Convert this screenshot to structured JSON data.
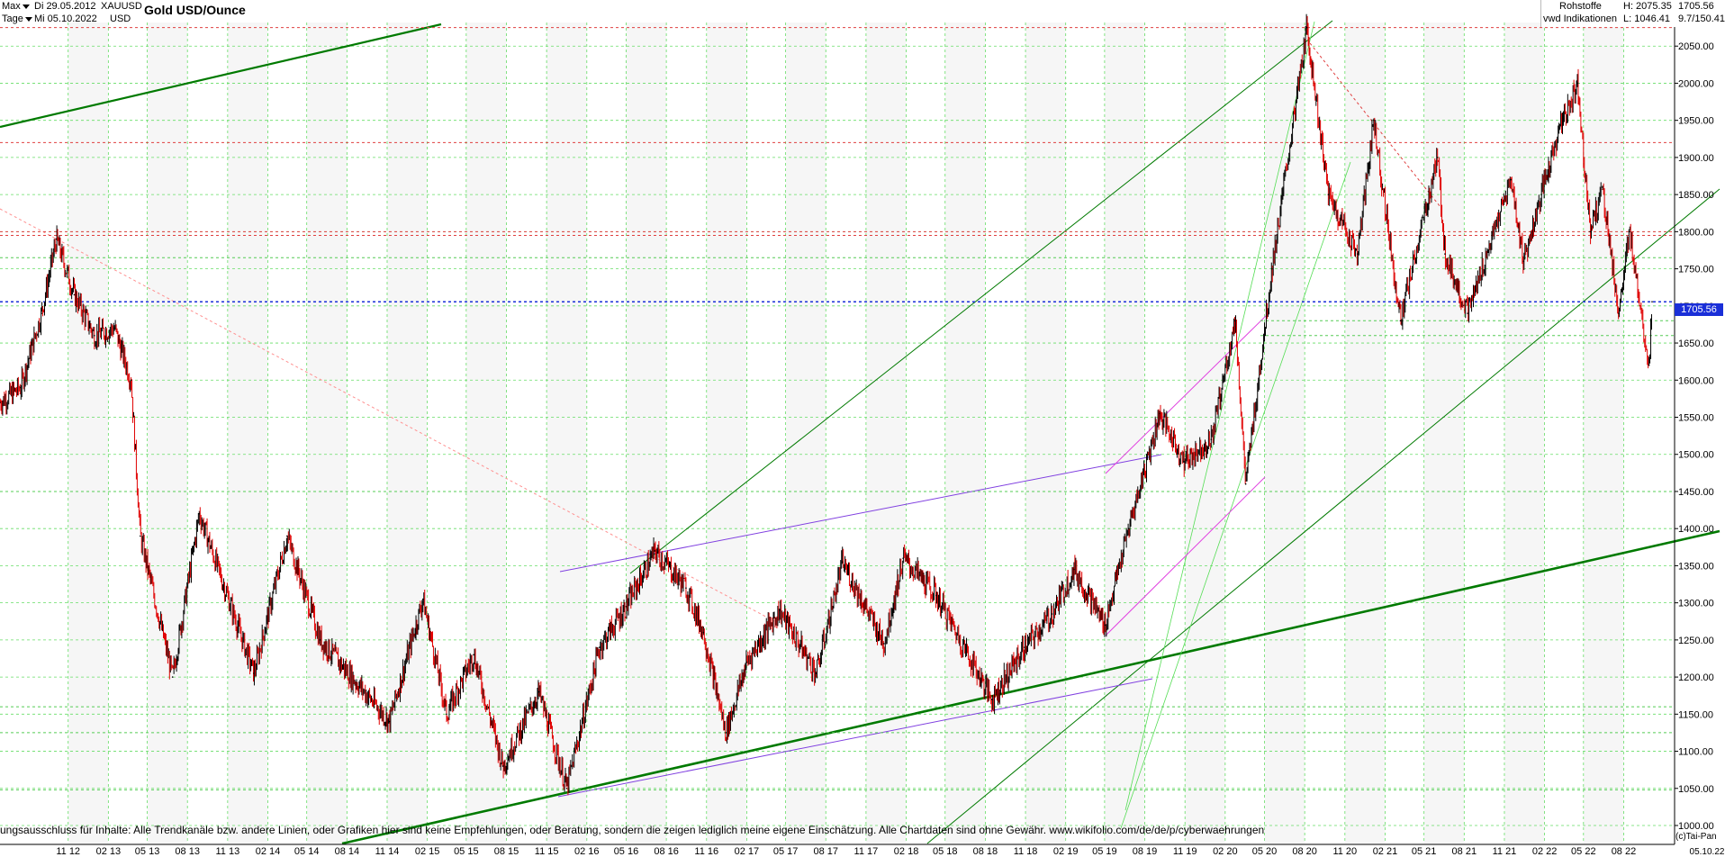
{
  "header": {
    "range_label": "Max",
    "interval_label": "Tage",
    "date_from": "Di 29.05.2012",
    "date_to": "Mi 05.10.2022",
    "symbol": "XAUUSD",
    "currency": "USD",
    "title": "Gold USD/Ounce"
  },
  "info": {
    "category": "Rohstoffe",
    "source": "vwd Indikationen",
    "high": "H: 2075.35",
    "low": "L: 1046.41",
    "last": "1705.56",
    "ratio": "9.7/150.41"
  },
  "disclaimer": "ungsausschluss für Inhalte: Alle Trendkanäle bzw. andere Linien, oder Grafiken hier sind keine Empfehlungen, oder Beratung, sondern die zeigen lediglich meine eigene Einschätzung. Alle Chartdaten sind ohne Gewähr.  www.wikifolio.com/de/de/p/cyberwaehrungen",
  "copyright": "(c)Tai-Pan",
  "colors": {
    "candle": "#000000",
    "down": "#e00000",
    "grid": "#66dd66",
    "trend": "#007a00",
    "support": "#e04040",
    "current": "#1a2fd8",
    "channel": "#8040e0",
    "magenta": "#e040e0"
  },
  "chart_data": {
    "type": "line",
    "title": "Gold USD/Ounce",
    "ylim": [
      1000,
      2100
    ],
    "yticks": [
      "1000.00",
      "1050.00",
      "1100.00",
      "1150.00",
      "1200.00",
      "1250.00",
      "1300.00",
      "1350.00",
      "1400.00",
      "1450.00",
      "1500.00",
      "1550.00",
      "1600.00",
      "1650.00",
      "1700.00",
      "1750.00",
      "1800.00",
      "1850.00",
      "1900.00",
      "1950.00",
      "2000.00",
      "2050.00"
    ],
    "xticks": [
      "11 12",
      "02 13",
      "05 13",
      "08 13",
      "11 13",
      "02 14",
      "05 14",
      "08 14",
      "11 14",
      "02 15",
      "05 15",
      "08 15",
      "11 15",
      "02 16",
      "05 16",
      "08 16",
      "11 16",
      "02 17",
      "05 17",
      "08 17",
      "11 17",
      "02 18",
      "05 18",
      "08 18",
      "11 18",
      "02 19",
      "05 19",
      "08 19",
      "11 19",
      "02 20",
      "05 20",
      "08 20",
      "11 20",
      "02 21",
      "05 21",
      "08 21",
      "11 21",
      "02 22",
      "05 22",
      "08 22",
      "05.10.22"
    ],
    "x_range": [
      "2012-05-29",
      "2022-10-05"
    ],
    "series": [
      {
        "x": [
          "2012-05-29",
          "2012-07-15",
          "2012-09-01",
          "2012-10-05",
          "2012-11-15",
          "2012-12-31",
          "2013-02-15",
          "2013-03-25",
          "2013-04-15",
          "2013-06-28",
          "2013-08-28",
          "2013-12-31",
          "2014-03-17",
          "2014-06-01",
          "2014-11-06",
          "2015-01-22",
          "2015-03-17",
          "2015-05-18",
          "2015-07-24",
          "2015-10-14",
          "2015-12-17",
          "2016-03-01",
          "2016-05-01",
          "2016-07-06",
          "2016-09-15",
          "2016-10-25",
          "2016-12-15",
          "2017-02-01",
          "2017-04-17",
          "2017-07-10",
          "2017-09-08",
          "2017-12-12",
          "2018-01-25",
          "2018-04-11",
          "2018-08-16",
          "2018-10-30",
          "2019-01-01",
          "2019-02-20",
          "2019-05-02",
          "2019-06-25",
          "2019-09-04",
          "2019-10-30",
          "2019-12-31",
          "2020-02-24",
          "2020-03-19",
          "2020-05-18",
          "2020-08-06",
          "2020-09-24",
          "2020-11-30",
          "2021-01-06",
          "2021-03-08",
          "2021-06-01",
          "2021-06-18",
          "2021-08-09",
          "2021-11-16",
          "2021-12-15",
          "2022-01-25",
          "2022-03-08",
          "2022-04-18",
          "2022-05-16",
          "2022-06-13",
          "2022-07-21",
          "2022-08-15",
          "2022-09-28",
          "2022-10-05"
        ],
        "values": [
          1570,
          1590,
          1690,
          1790,
          1715,
          1660,
          1670,
          1600,
          1390,
          1200,
          1420,
          1205,
          1390,
          1250,
          1140,
          1305,
          1150,
          1230,
          1080,
          1180,
          1050,
          1240,
          1295,
          1370,
          1320,
          1260,
          1125,
          1220,
          1290,
          1205,
          1355,
          1245,
          1360,
          1310,
          1170,
          1240,
          1285,
          1345,
          1270,
          1400,
          1555,
          1490,
          1520,
          1680,
          1460,
          1750,
          2075,
          1850,
          1770,
          1950,
          1680,
          1900,
          1770,
          1690,
          1870,
          1760,
          1850,
          1940,
          2000,
          1800,
          1860,
          1690,
          1800,
          1620,
          1705.56
        ]
      }
    ],
    "horizontal_levels": [
      2075,
      1920,
      1800,
      1795,
      1705.56,
      1765,
      1680,
      1660,
      1450,
      1160,
      1125,
      1048
    ],
    "grid": true
  }
}
